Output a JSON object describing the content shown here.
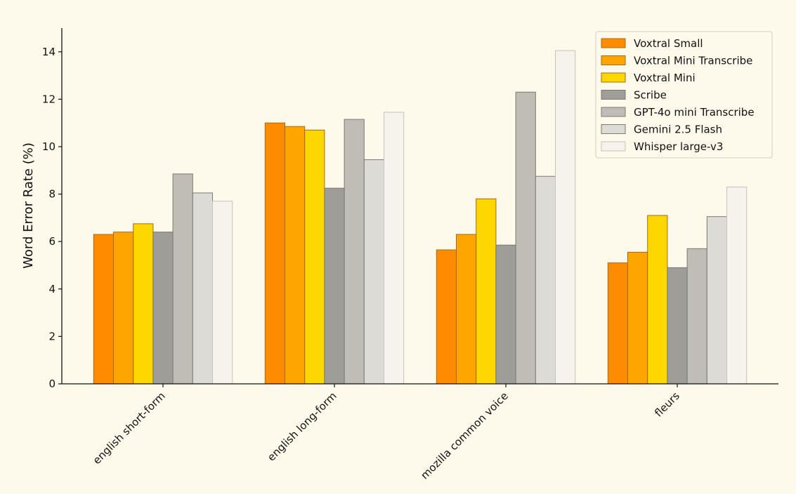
{
  "chart_data": {
    "type": "bar",
    "title": "",
    "xlabel": "",
    "ylabel": "Word Error Rate (%)",
    "ylim": [
      0,
      15
    ],
    "yticks": [
      0,
      2,
      4,
      6,
      8,
      10,
      12,
      14
    ],
    "grid": false,
    "legend_position": "top-right",
    "categories": [
      "english short-form",
      "english long-form",
      "mozilla common voice",
      "fleurs"
    ],
    "series": [
      {
        "name": "Voxtral Small",
        "color": "#ff8c00",
        "values": [
          6.3,
          11.0,
          5.65,
          5.1
        ]
      },
      {
        "name": "Voxtral Mini Transcribe",
        "color": "#ffa500",
        "values": [
          6.4,
          10.85,
          6.3,
          5.55
        ]
      },
      {
        "name": "Voxtral Mini",
        "color": "#ffd700",
        "values": [
          6.75,
          10.7,
          7.8,
          7.1
        ]
      },
      {
        "name": "Scribe",
        "color": "#9e9d98",
        "values": [
          6.4,
          8.25,
          5.85,
          4.9
        ]
      },
      {
        "name": "GPT-4o mini Transcribe",
        "color": "#bfbdb6",
        "values": [
          8.85,
          11.15,
          12.3,
          5.7
        ]
      },
      {
        "name": "Gemini 2.5 Flash",
        "color": "#dcdbd6",
        "values": [
          8.05,
          9.45,
          8.75,
          7.05
        ]
      },
      {
        "name": "Whisper large-v3",
        "color": "#f5f3ec",
        "values": [
          7.7,
          11.45,
          14.05,
          8.3
        ]
      }
    ]
  }
}
